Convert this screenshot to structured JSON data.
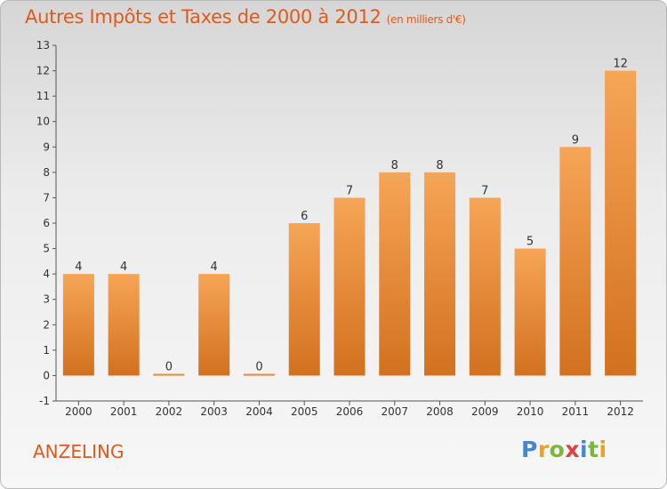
{
  "header": {
    "title": "Autres Impôts et Taxes de 2000 à 2012",
    "subtitle": "(en milliers d'€)"
  },
  "commune": "ANZELING",
  "logo": {
    "letters": [
      "P",
      "r",
      "o",
      "x",
      "i",
      "t",
      "i"
    ],
    "colors": [
      "#4a86c8",
      "#f0a020",
      "#7ab838",
      "#e04040",
      "#4a86c8",
      "#7ab838",
      "#f0a020"
    ]
  },
  "chart_data": {
    "type": "bar",
    "title": "Autres Impôts et Taxes de 2000 à 2012",
    "subtitle": "(en milliers d'€)",
    "categories": [
      "2000",
      "2001",
      "2002",
      "2003",
      "2004",
      "2005",
      "2006",
      "2007",
      "2008",
      "2009",
      "2010",
      "2011",
      "2012"
    ],
    "values": [
      4,
      4,
      0,
      4,
      0,
      6,
      7,
      8,
      8,
      7,
      5,
      9,
      12
    ],
    "ylim": [
      -1,
      13
    ],
    "yticks": [
      -1,
      0,
      1,
      2,
      3,
      4,
      5,
      6,
      7,
      8,
      9,
      10,
      11,
      12,
      13
    ],
    "grid": false,
    "bar_color": "#f0a050",
    "bar_color_dark": "#d06a1a"
  }
}
